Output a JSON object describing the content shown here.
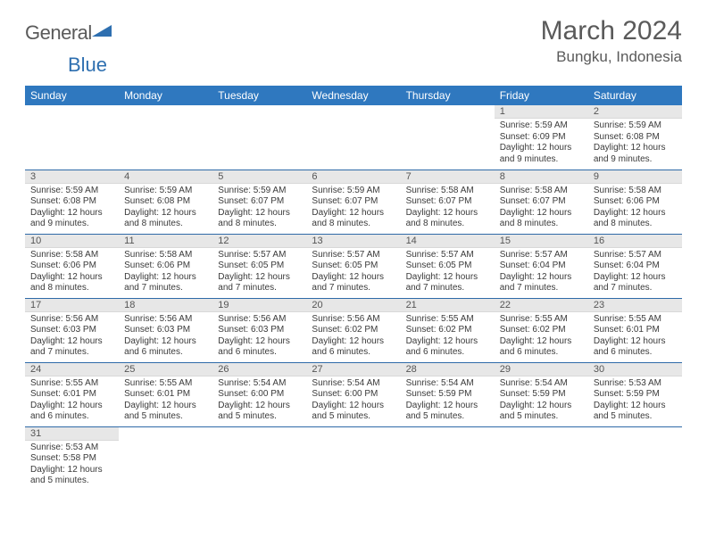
{
  "brand": {
    "general": "General",
    "blue": "Blue"
  },
  "title": "March 2024",
  "location": "Bungku, Indonesia",
  "colors": {
    "header_bg": "#2f78bf",
    "row_border": "#2f6aa8",
    "daynum_bg": "#e7e7e7"
  },
  "weekdays": [
    "Sunday",
    "Monday",
    "Tuesday",
    "Wednesday",
    "Thursday",
    "Friday",
    "Saturday"
  ],
  "weeks": [
    [
      null,
      null,
      null,
      null,
      null,
      {
        "n": "1",
        "sr": "5:59 AM",
        "ss": "6:09 PM",
        "dl": "12 hours and 9 minutes."
      },
      {
        "n": "2",
        "sr": "5:59 AM",
        "ss": "6:08 PM",
        "dl": "12 hours and 9 minutes."
      }
    ],
    [
      {
        "n": "3",
        "sr": "5:59 AM",
        "ss": "6:08 PM",
        "dl": "12 hours and 9 minutes."
      },
      {
        "n": "4",
        "sr": "5:59 AM",
        "ss": "6:08 PM",
        "dl": "12 hours and 8 minutes."
      },
      {
        "n": "5",
        "sr": "5:59 AM",
        "ss": "6:07 PM",
        "dl": "12 hours and 8 minutes."
      },
      {
        "n": "6",
        "sr": "5:59 AM",
        "ss": "6:07 PM",
        "dl": "12 hours and 8 minutes."
      },
      {
        "n": "7",
        "sr": "5:58 AM",
        "ss": "6:07 PM",
        "dl": "12 hours and 8 minutes."
      },
      {
        "n": "8",
        "sr": "5:58 AM",
        "ss": "6:07 PM",
        "dl": "12 hours and 8 minutes."
      },
      {
        "n": "9",
        "sr": "5:58 AM",
        "ss": "6:06 PM",
        "dl": "12 hours and 8 minutes."
      }
    ],
    [
      {
        "n": "10",
        "sr": "5:58 AM",
        "ss": "6:06 PM",
        "dl": "12 hours and 8 minutes."
      },
      {
        "n": "11",
        "sr": "5:58 AM",
        "ss": "6:06 PM",
        "dl": "12 hours and 7 minutes."
      },
      {
        "n": "12",
        "sr": "5:57 AM",
        "ss": "6:05 PM",
        "dl": "12 hours and 7 minutes."
      },
      {
        "n": "13",
        "sr": "5:57 AM",
        "ss": "6:05 PM",
        "dl": "12 hours and 7 minutes."
      },
      {
        "n": "14",
        "sr": "5:57 AM",
        "ss": "6:05 PM",
        "dl": "12 hours and 7 minutes."
      },
      {
        "n": "15",
        "sr": "5:57 AM",
        "ss": "6:04 PM",
        "dl": "12 hours and 7 minutes."
      },
      {
        "n": "16",
        "sr": "5:57 AM",
        "ss": "6:04 PM",
        "dl": "12 hours and 7 minutes."
      }
    ],
    [
      {
        "n": "17",
        "sr": "5:56 AM",
        "ss": "6:03 PM",
        "dl": "12 hours and 7 minutes."
      },
      {
        "n": "18",
        "sr": "5:56 AM",
        "ss": "6:03 PM",
        "dl": "12 hours and 6 minutes."
      },
      {
        "n": "19",
        "sr": "5:56 AM",
        "ss": "6:03 PM",
        "dl": "12 hours and 6 minutes."
      },
      {
        "n": "20",
        "sr": "5:56 AM",
        "ss": "6:02 PM",
        "dl": "12 hours and 6 minutes."
      },
      {
        "n": "21",
        "sr": "5:55 AM",
        "ss": "6:02 PM",
        "dl": "12 hours and 6 minutes."
      },
      {
        "n": "22",
        "sr": "5:55 AM",
        "ss": "6:02 PM",
        "dl": "12 hours and 6 minutes."
      },
      {
        "n": "23",
        "sr": "5:55 AM",
        "ss": "6:01 PM",
        "dl": "12 hours and 6 minutes."
      }
    ],
    [
      {
        "n": "24",
        "sr": "5:55 AM",
        "ss": "6:01 PM",
        "dl": "12 hours and 6 minutes."
      },
      {
        "n": "25",
        "sr": "5:55 AM",
        "ss": "6:01 PM",
        "dl": "12 hours and 5 minutes."
      },
      {
        "n": "26",
        "sr": "5:54 AM",
        "ss": "6:00 PM",
        "dl": "12 hours and 5 minutes."
      },
      {
        "n": "27",
        "sr": "5:54 AM",
        "ss": "6:00 PM",
        "dl": "12 hours and 5 minutes."
      },
      {
        "n": "28",
        "sr": "5:54 AM",
        "ss": "5:59 PM",
        "dl": "12 hours and 5 minutes."
      },
      {
        "n": "29",
        "sr": "5:54 AM",
        "ss": "5:59 PM",
        "dl": "12 hours and 5 minutes."
      },
      {
        "n": "30",
        "sr": "5:53 AM",
        "ss": "5:59 PM",
        "dl": "12 hours and 5 minutes."
      }
    ],
    [
      {
        "n": "31",
        "sr": "5:53 AM",
        "ss": "5:58 PM",
        "dl": "12 hours and 5 minutes."
      },
      null,
      null,
      null,
      null,
      null,
      null
    ]
  ],
  "labels": {
    "sunrise": "Sunrise: ",
    "sunset": "Sunset: ",
    "daylight": "Daylight: "
  }
}
